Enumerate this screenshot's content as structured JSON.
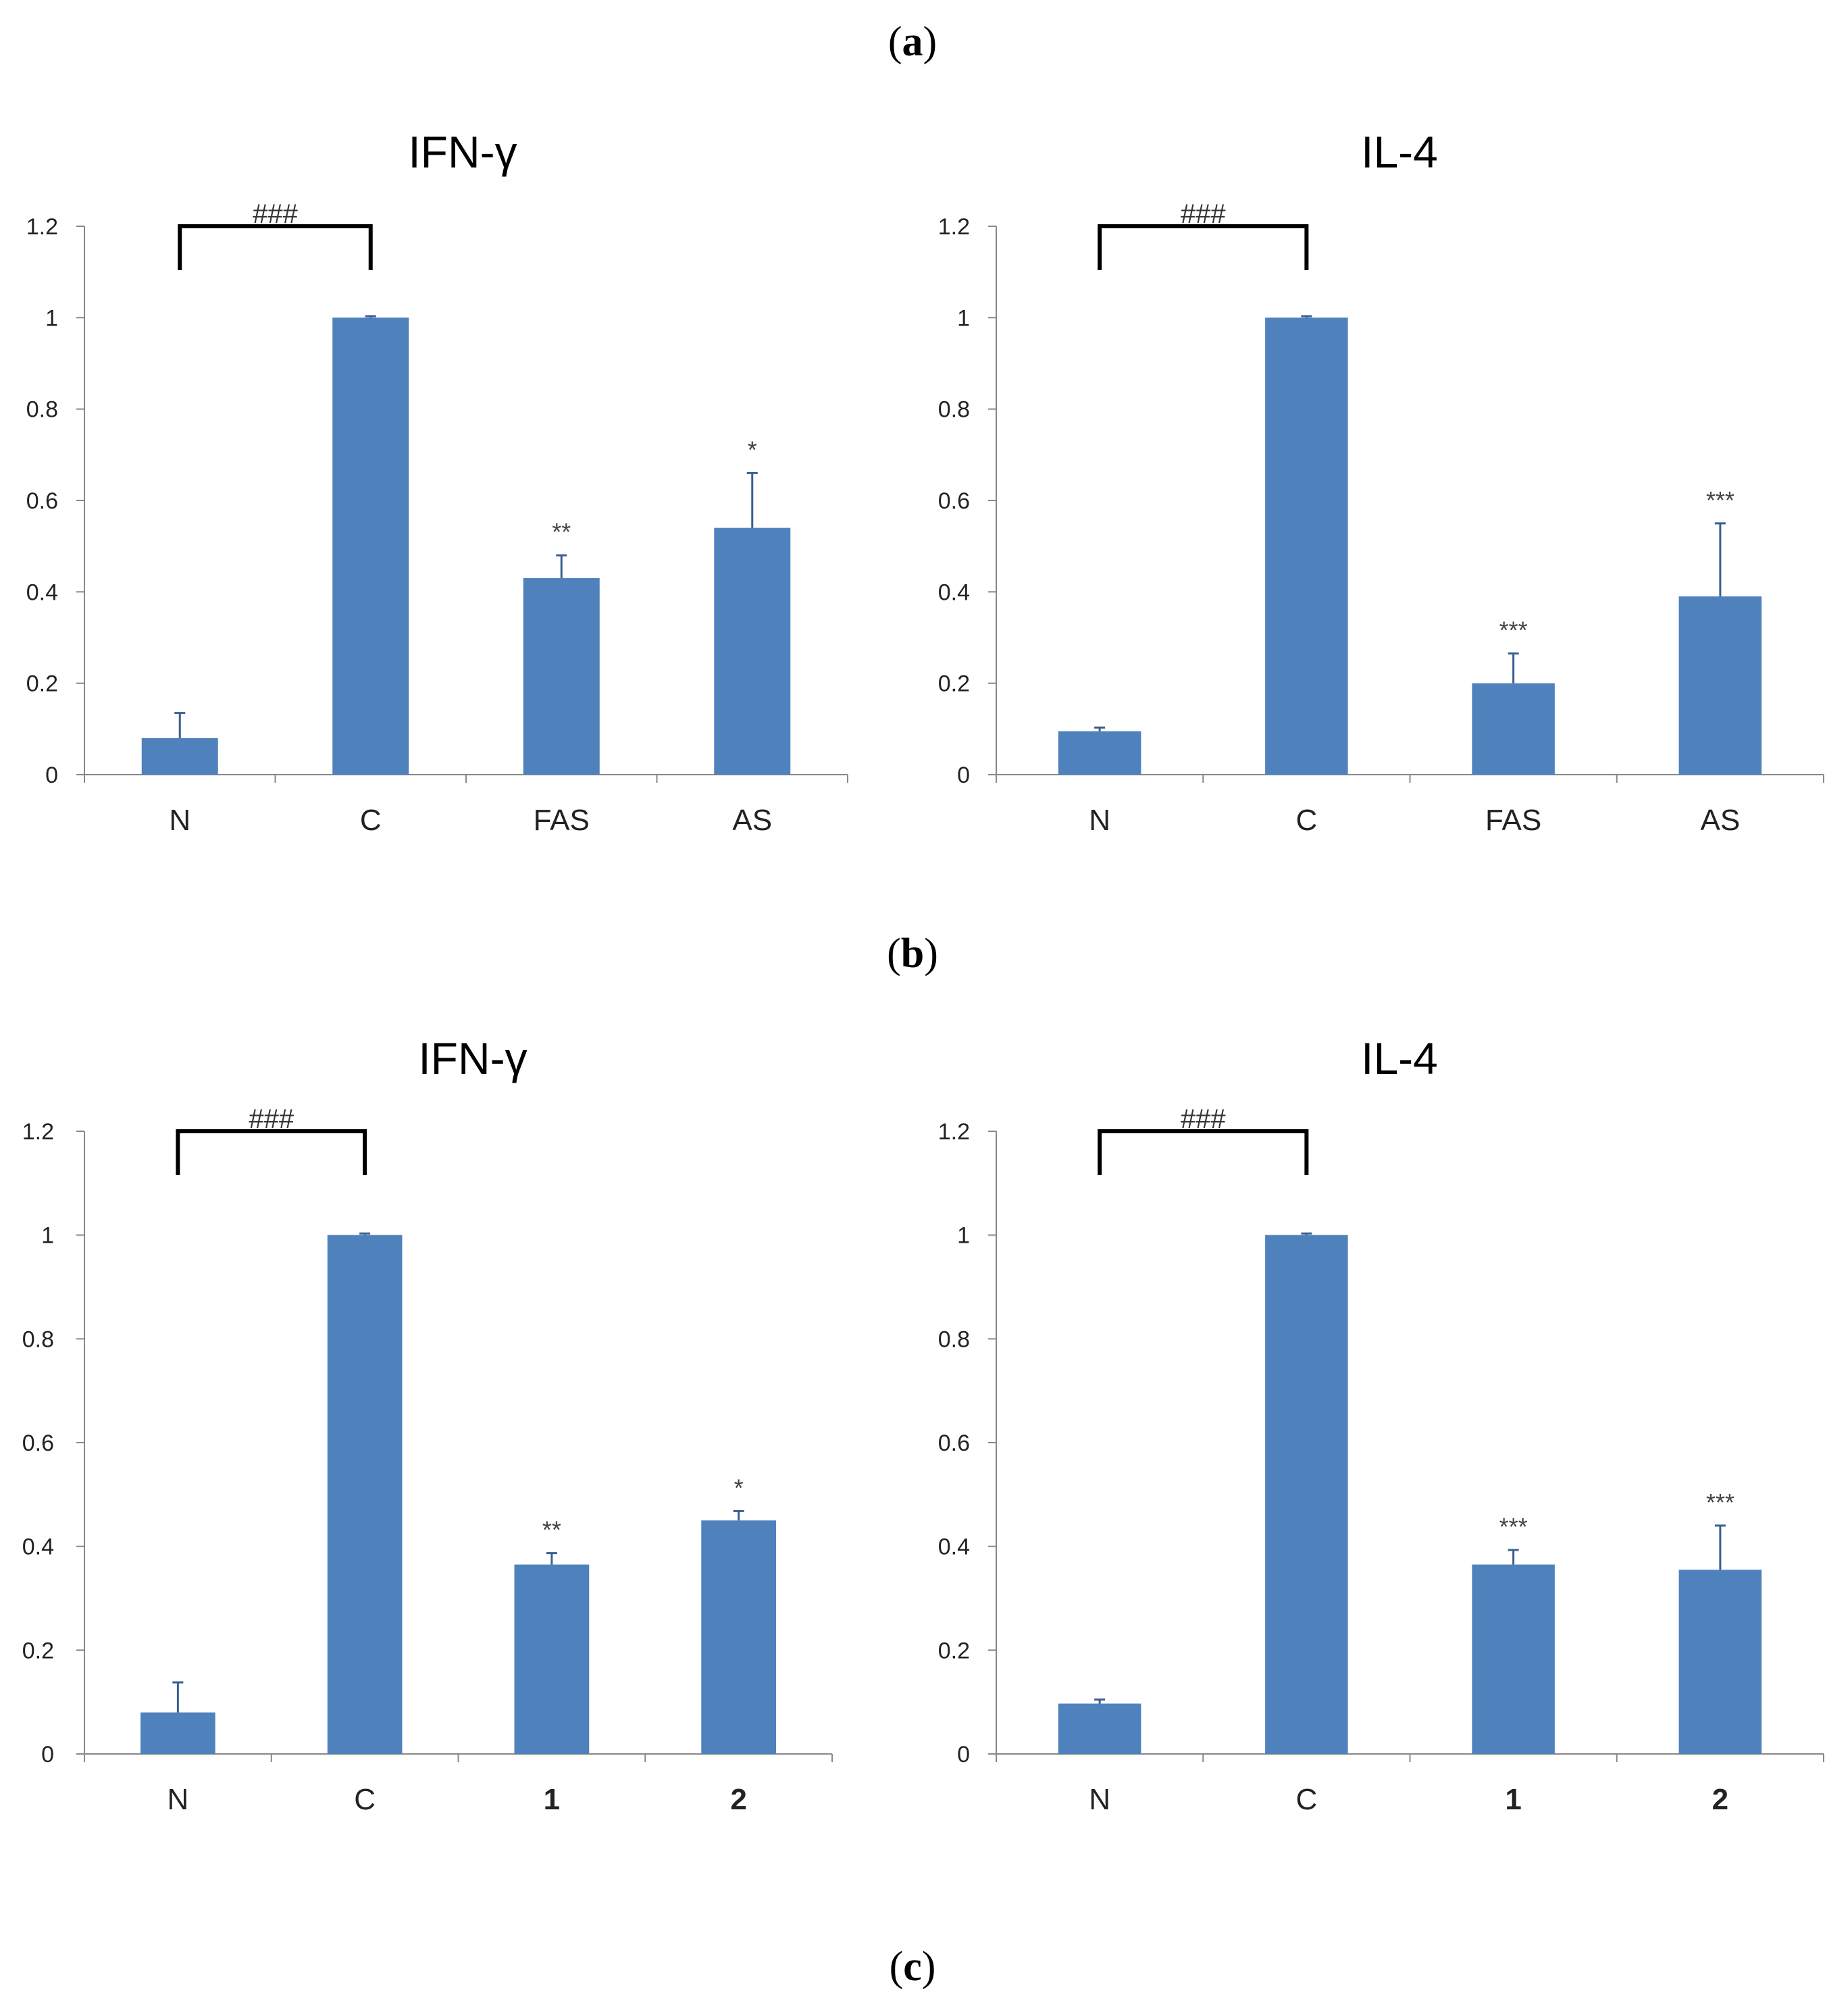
{
  "panels": {
    "a": "a",
    "b": "b",
    "c": "c"
  },
  "chart_data": [
    {
      "type": "bar",
      "title": "IFN-γ",
      "categories": [
        "N",
        "C",
        "FAS",
        "AS"
      ],
      "bold_categories": [
        false,
        false,
        false,
        false
      ],
      "values": [
        0.08,
        1.0,
        0.43,
        0.54
      ],
      "errors": [
        0.055,
        0.003,
        0.05,
        0.12
      ],
      "significance": [
        "",
        "",
        "**",
        "*"
      ],
      "bracket": {
        "from": 0,
        "to": 1,
        "label": "###"
      },
      "yticks": [
        "0",
        "0.2",
        "0.4",
        "0.6",
        "0.8",
        "1",
        "1.2"
      ],
      "ylim": [
        0,
        1.2
      ],
      "xlabel": "",
      "ylabel": "",
      "color": "#4f81bd"
    },
    {
      "type": "bar",
      "title": "IL-4",
      "categories": [
        "N",
        "C",
        "FAS",
        "AS"
      ],
      "bold_categories": [
        false,
        false,
        false,
        false
      ],
      "values": [
        0.095,
        1.0,
        0.2,
        0.39
      ],
      "errors": [
        0.008,
        0.003,
        0.065,
        0.16
      ],
      "significance": [
        "",
        "",
        "***",
        "***"
      ],
      "bracket": {
        "from": 0,
        "to": 1,
        "label": "###"
      },
      "yticks": [
        "0",
        "0.2",
        "0.4",
        "0.6",
        "0.8",
        "1",
        "1.2"
      ],
      "ylim": [
        0,
        1.2
      ],
      "xlabel": "",
      "ylabel": "",
      "color": "#4f81bd"
    },
    {
      "type": "bar",
      "title": "IFN-γ",
      "categories": [
        "N",
        "C",
        "1",
        "2"
      ],
      "bold_categories": [
        false,
        false,
        true,
        true
      ],
      "values": [
        0.08,
        1.0,
        0.365,
        0.45
      ],
      "errors": [
        0.058,
        0.003,
        0.022,
        0.018
      ],
      "significance": [
        "",
        "",
        "**",
        "*"
      ],
      "bracket": {
        "from": 0,
        "to": 1,
        "label": "###"
      },
      "yticks": [
        "0",
        "0.2",
        "0.4",
        "0.6",
        "0.8",
        "1",
        "1.2"
      ],
      "ylim": [
        0,
        1.2
      ],
      "xlabel": "",
      "ylabel": "",
      "color": "#4f81bd"
    },
    {
      "type": "bar",
      "title": "IL-4",
      "categories": [
        "N",
        "C",
        "1",
        "2"
      ],
      "bold_categories": [
        false,
        false,
        true,
        true
      ],
      "values": [
        0.097,
        1.0,
        0.365,
        0.355
      ],
      "errors": [
        0.008,
        0.003,
        0.028,
        0.085
      ],
      "significance": [
        "",
        "",
        "***",
        "***"
      ],
      "bracket": {
        "from": 0,
        "to": 1,
        "label": "###"
      },
      "yticks": [
        "0",
        "0.2",
        "0.4",
        "0.6",
        "0.8",
        "1",
        "1.2"
      ],
      "ylim": [
        0,
        1.2
      ],
      "xlabel": "",
      "ylabel": "",
      "color": "#4f81bd"
    }
  ]
}
